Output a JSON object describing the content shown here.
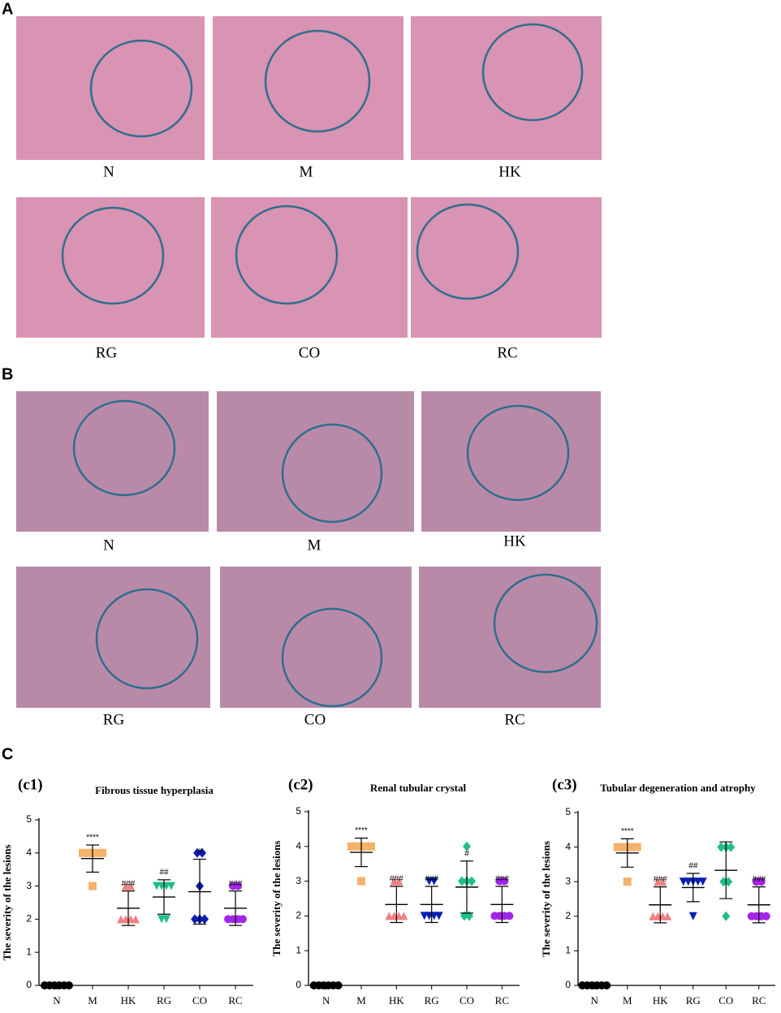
{
  "panel_labels": [
    "A",
    "B",
    "C"
  ],
  "panel_a": {
    "labels": [
      "N",
      "M",
      "HK",
      "RG",
      "CO",
      "RC"
    ]
  },
  "panel_b": {
    "labels": [
      "N",
      "M",
      "HK",
      "RG",
      "CO",
      "RC"
    ]
  },
  "chart_data": [
    {
      "type": "dotplot",
      "label": "(c1)",
      "title": "Fibrous tissue hyperplasia",
      "ylabel": "The severity of the lesions",
      "categories": [
        "N",
        "M",
        "HK",
        "RG",
        "CO",
        "RC"
      ],
      "ylim": [
        0,
        5
      ],
      "yticks": [
        0,
        1,
        2,
        3,
        4,
        5
      ],
      "groups": [
        {
          "color": "#000000",
          "marker": "circle",
          "values": [
            0,
            0,
            0,
            0,
            0,
            0
          ],
          "mean": 0,
          "sd": 0
        },
        {
          "color": "#f5b26b",
          "marker": "square",
          "values": [
            4,
            4,
            4,
            4,
            4,
            3
          ],
          "mean": 3.83,
          "sd": 0.41,
          "annotation": "****"
        },
        {
          "color": "#f08080",
          "marker": "triangle",
          "values": [
            3,
            3,
            2,
            2,
            2,
            2
          ],
          "mean": 2.33,
          "sd": 0.52,
          "annotation": "###"
        },
        {
          "color": "#1dbf8c",
          "marker": "down-triangle",
          "values": [
            3,
            3,
            3,
            3,
            2,
            2
          ],
          "mean": 2.67,
          "sd": 0.52,
          "annotation": "##"
        },
        {
          "color": "#0a1fb5",
          "marker": "diamond",
          "values": [
            4,
            4,
            3,
            2,
            2,
            2
          ],
          "mean": 2.83,
          "sd": 0.98,
          "annotation": "#"
        },
        {
          "color": "#a326e8",
          "marker": "circle",
          "values": [
            3,
            3,
            2,
            2,
            2,
            2
          ],
          "mean": 2.33,
          "sd": 0.52,
          "annotation": "###"
        }
      ]
    },
    {
      "type": "dotplot",
      "label": "(c2)",
      "title": "Renal tubular crystal",
      "ylabel": "The severity of the lesions",
      "categories": [
        "N",
        "M",
        "HK",
        "RG",
        "CO",
        "RC"
      ],
      "ylim": [
        0,
        5
      ],
      "yticks": [
        0,
        1,
        2,
        3,
        4,
        5
      ],
      "groups": [
        {
          "color": "#000000",
          "marker": "circle",
          "values": [
            0,
            0,
            0,
            0,
            0,
            0
          ],
          "mean": 0,
          "sd": 0
        },
        {
          "color": "#f5b26b",
          "marker": "square",
          "values": [
            4,
            4,
            4,
            4,
            4,
            3
          ],
          "mean": 3.83,
          "sd": 0.41,
          "annotation": "****"
        },
        {
          "color": "#f08080",
          "marker": "triangle",
          "values": [
            3,
            3,
            2,
            2,
            2,
            2
          ],
          "mean": 2.33,
          "sd": 0.52,
          "annotation": "###"
        },
        {
          "color": "#0a1fb5",
          "marker": "down-triangle",
          "values": [
            3,
            3,
            2,
            2,
            2,
            2
          ],
          "mean": 2.33,
          "sd": 0.52,
          "annotation": "###"
        },
        {
          "color": "#1dbf8c",
          "marker": "diamond",
          "values": [
            4,
            3,
            3,
            3,
            2,
            2
          ],
          "mean": 2.83,
          "sd": 0.75,
          "annotation": "#"
        },
        {
          "color": "#a326e8",
          "marker": "circle",
          "values": [
            3,
            3,
            2,
            2,
            2,
            2
          ],
          "mean": 2.33,
          "sd": 0.52,
          "annotation": "###"
        }
      ]
    },
    {
      "type": "dotplot",
      "label": "(c3)",
      "title": "Tubular degeneration and atrophy",
      "ylabel": "The severity of the lesions",
      "categories": [
        "N",
        "M",
        "HK",
        "RG",
        "CO",
        "RC"
      ],
      "ylim": [
        0,
        5
      ],
      "yticks": [
        0,
        1,
        2,
        3,
        4,
        5
      ],
      "groups": [
        {
          "color": "#000000",
          "marker": "circle",
          "values": [
            0,
            0,
            0,
            0,
            0,
            0
          ],
          "mean": 0,
          "sd": 0
        },
        {
          "color": "#f5b26b",
          "marker": "square",
          "values": [
            4,
            4,
            4,
            4,
            4,
            3
          ],
          "mean": 3.83,
          "sd": 0.41,
          "annotation": "****"
        },
        {
          "color": "#f08080",
          "marker": "triangle",
          "values": [
            3,
            3,
            2,
            2,
            2,
            2
          ],
          "mean": 2.33,
          "sd": 0.52,
          "annotation": "###"
        },
        {
          "color": "#0a1fb5",
          "marker": "down-triangle",
          "values": [
            3,
            3,
            3,
            3,
            3,
            2
          ],
          "mean": 2.83,
          "sd": 0.41,
          "annotation": "##"
        },
        {
          "color": "#1dbf8c",
          "marker": "diamond",
          "values": [
            4,
            4,
            4,
            3,
            3,
            2
          ],
          "mean": 3.33,
          "sd": 0.82
        },
        {
          "color": "#a326e8",
          "marker": "circle",
          "values": [
            3,
            3,
            2,
            2,
            2,
            2
          ],
          "mean": 2.33,
          "sd": 0.52,
          "annotation": "###"
        }
      ]
    }
  ]
}
